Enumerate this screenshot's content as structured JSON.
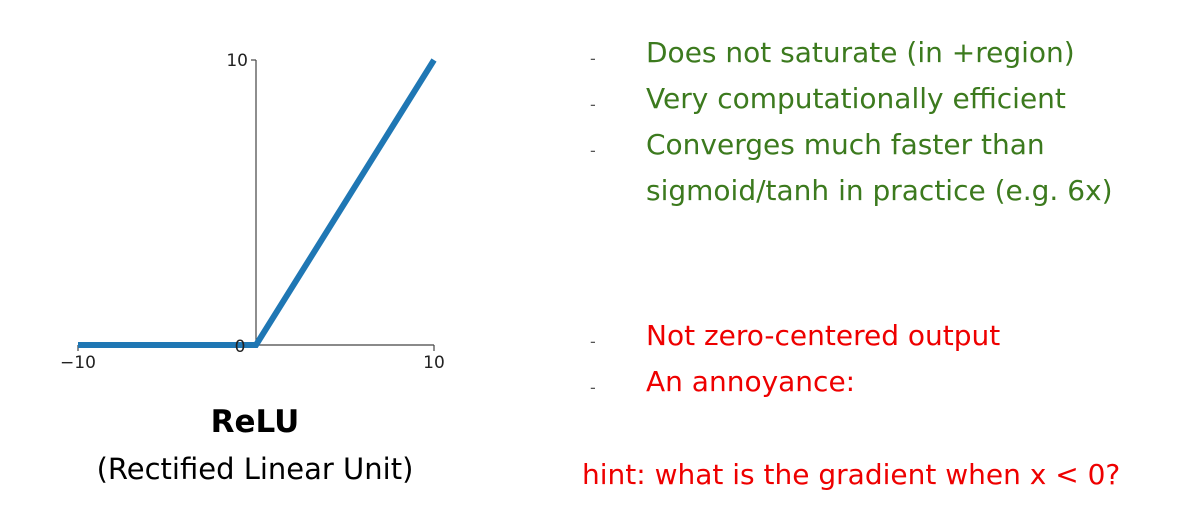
{
  "chart_data": {
    "type": "line",
    "function": "relu",
    "x": [
      -10,
      0,
      10
    ],
    "y": [
      0,
      0,
      10
    ],
    "xlim": [
      -10,
      10
    ],
    "ylim": [
      0,
      10
    ],
    "x_ticks": [
      "−10",
      "10"
    ],
    "y_ticks": [
      "10",
      "0"
    ],
    "line_color": "#1f77b4",
    "grid": false,
    "title": "",
    "xlabel": "",
    "ylabel": ""
  },
  "caption": {
    "title": "ReLU",
    "subtitle": "(Rectified Linear Unit)"
  },
  "pros": {
    "color": "#3c7a1e",
    "items": [
      "Does not saturate (in +region)",
      "Very computationally efficient",
      "Converges much faster than sigmoid/tanh in practice (e.g. 6x)"
    ]
  },
  "cons": {
    "color": "#ee0000",
    "items": [
      "Not zero-centered output",
      "An annoyance:"
    ]
  },
  "hint": "hint: what is the gradient when x < 0?",
  "bullet_marker": "-"
}
